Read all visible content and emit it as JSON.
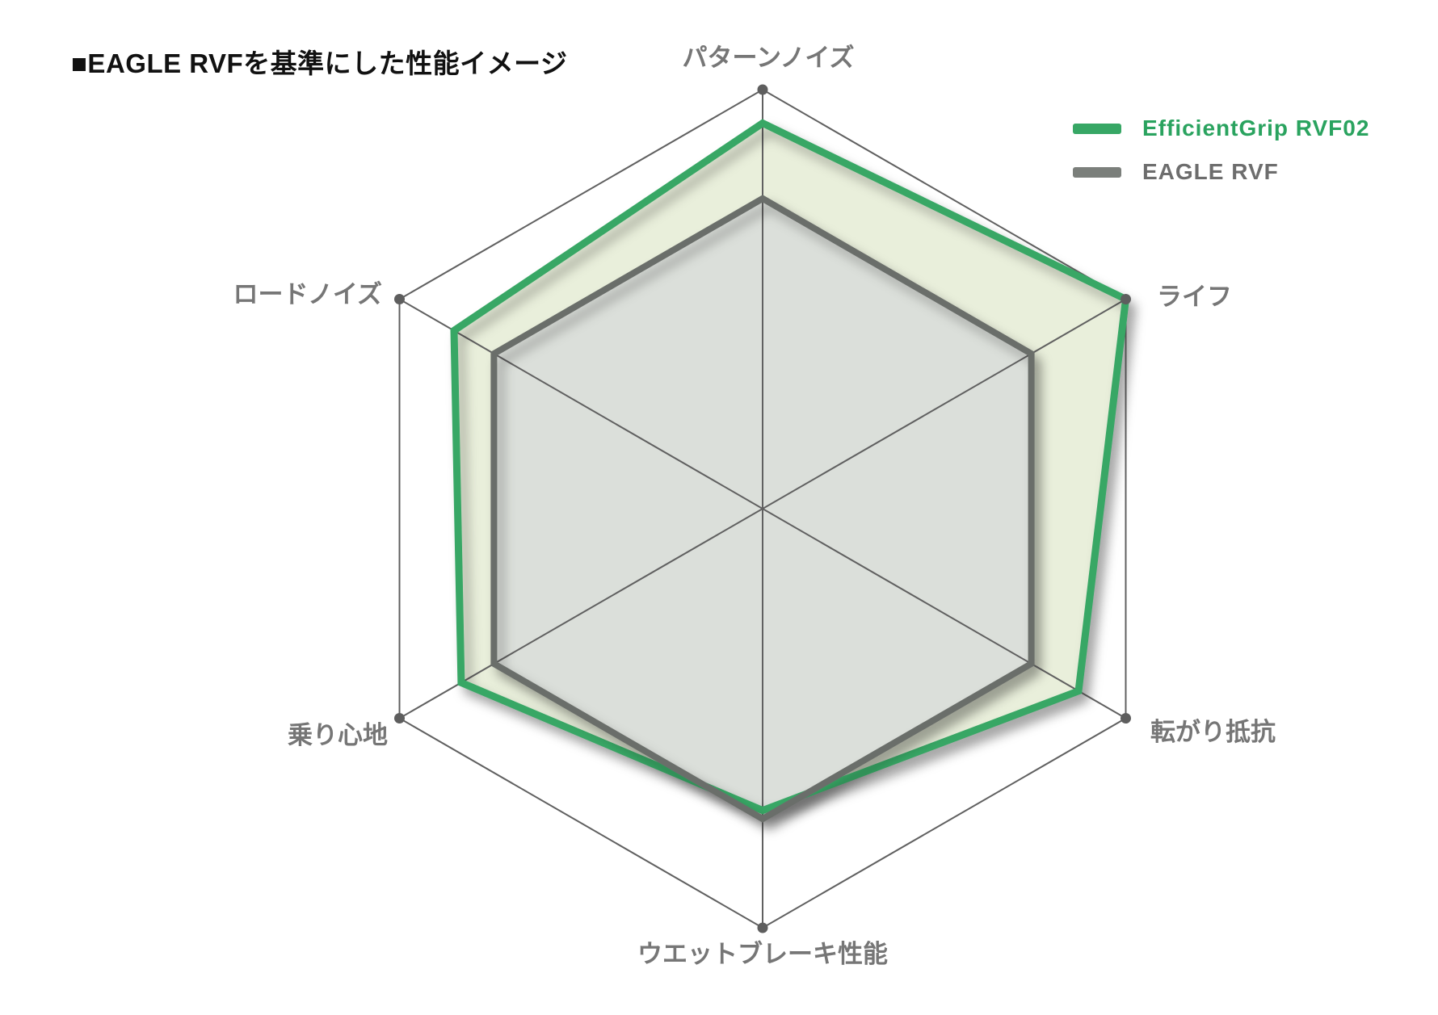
{
  "chart_data": {
    "type": "radar",
    "title": "■EAGLE RVFを基準にした性能イメージ",
    "axes": [
      "パターンノイズ",
      "ライフ",
      "転がり抵抗",
      "ウエットブレーキ性能",
      "乗り心地",
      "ロードノイズ"
    ],
    "axis_order": "clockwise from top",
    "axis_max_ratio": 1.0,
    "grid": "outer hexagon frame with 3 diagonals and vertex dots, no intermediate rings",
    "legend_position": "top-right",
    "series": [
      {
        "name": "EfficientGrip RVF02",
        "color": "#37a765",
        "fill": "#e9efdb",
        "values_ratio": [
          0.92,
          1.0,
          0.87,
          0.72,
          0.83,
          0.85
        ],
        "values_vs_baseline_100": [
          124,
          136,
          118,
          98,
          113,
          115
        ]
      },
      {
        "name": "EAGLE RVF",
        "color": "#6a6e6a",
        "fill": "#dbdfda",
        "values_ratio": [
          0.74,
          0.74,
          0.74,
          0.74,
          0.74,
          0.74
        ],
        "values_vs_baseline_100": [
          100,
          100,
          100,
          100,
          100,
          100
        ]
      }
    ],
    "colors": {
      "frame_line": "#606060",
      "vertex_dot": "#5e5e5e",
      "axis_label": "#767676",
      "title": "#111111",
      "legend_green_text": "#2aa35f",
      "legend_gray_text": "#6d6d6d",
      "legend_gray_swatch": "#7b7f7b",
      "background": "#ffffff"
    }
  }
}
